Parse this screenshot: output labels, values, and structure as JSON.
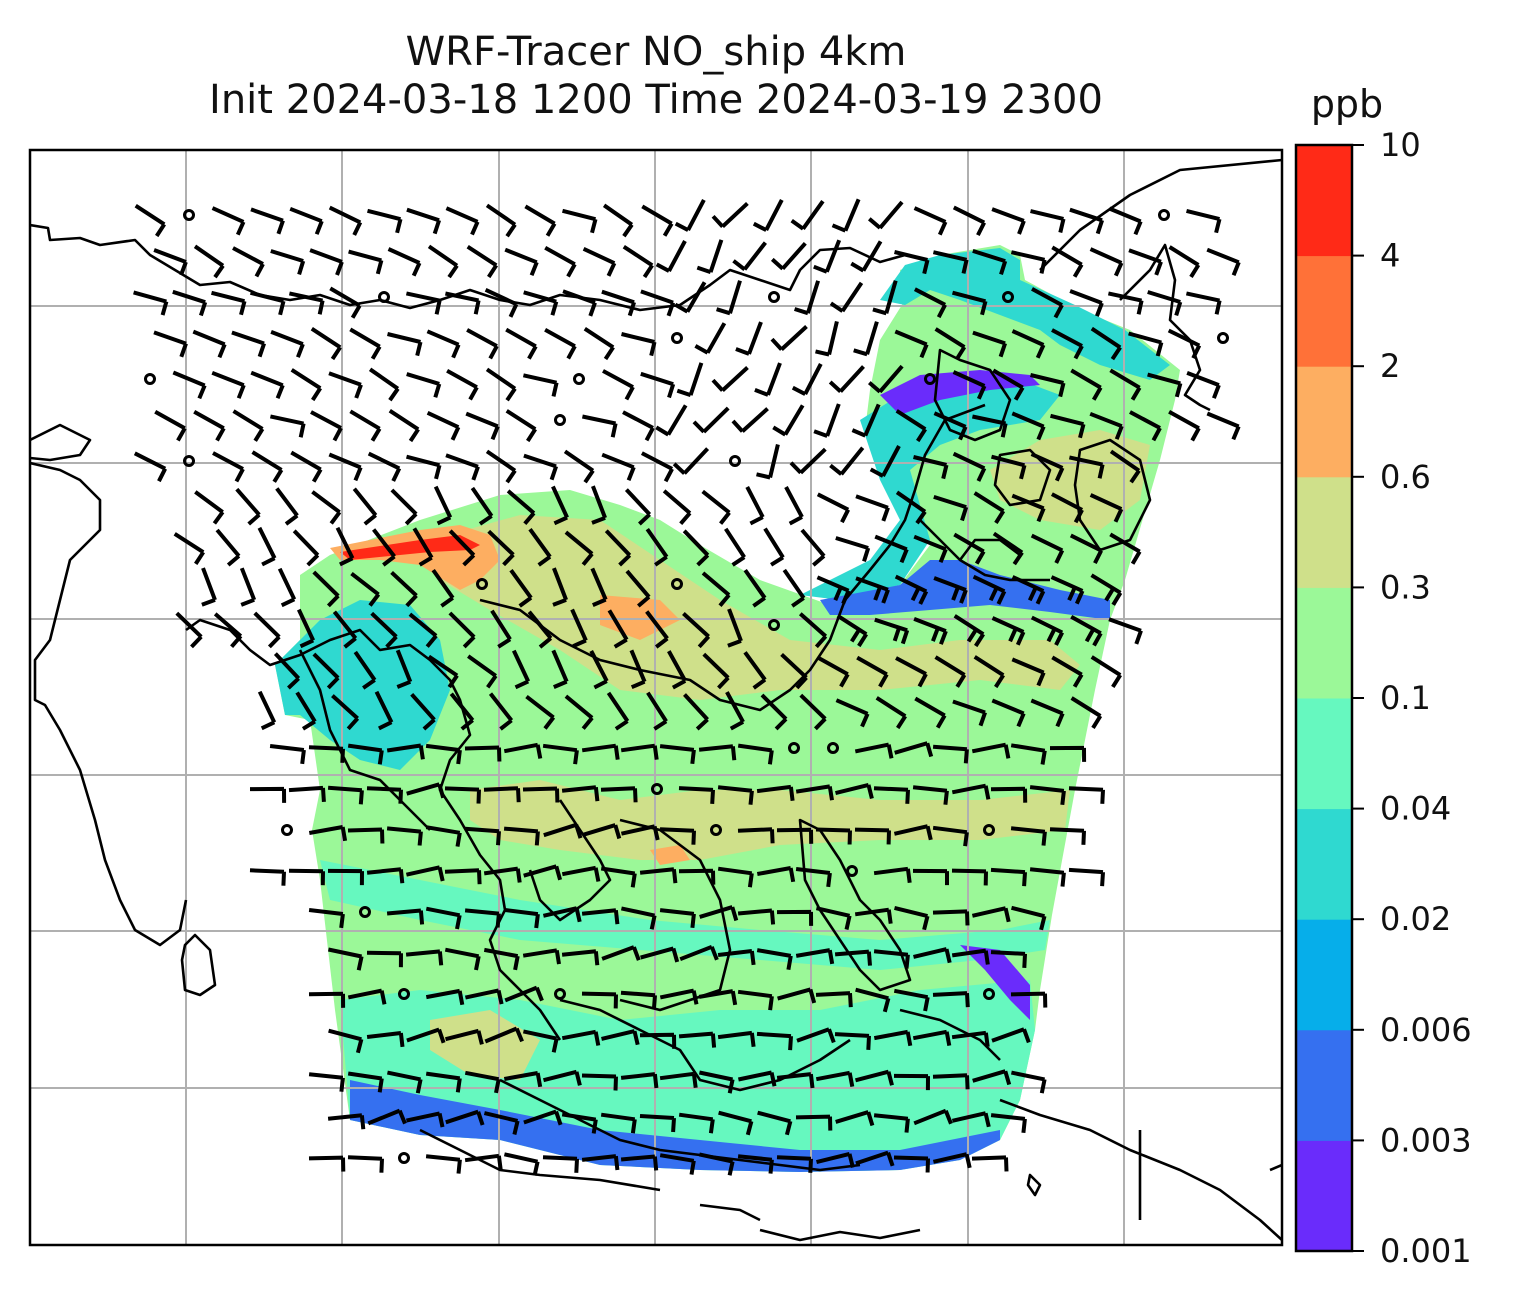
{
  "title": {
    "line1": "WRF-Tracer NO_ship 4km",
    "line2": "Init 2024-03-18 1200 Time 2024-03-19 2300"
  },
  "colorbar": {
    "unit": "ppb",
    "levels": [
      "0.001",
      "0.003",
      "0.006",
      "0.02",
      "0.04",
      "0.1",
      "0.3",
      "0.6",
      "2",
      "4",
      "10"
    ],
    "colors": [
      "#6a2cfb",
      "#3570f0",
      "#06aeea",
      "#2fd9d0",
      "#66f8bf",
      "#9bf898",
      "#cfe08a",
      "#fdae61",
      "#ff7138",
      "#ff2a17"
    ]
  },
  "map": {
    "land_outline_color": "#000000",
    "grid_color": "#b0b0b0",
    "wind_barb_color": "#000000"
  }
}
